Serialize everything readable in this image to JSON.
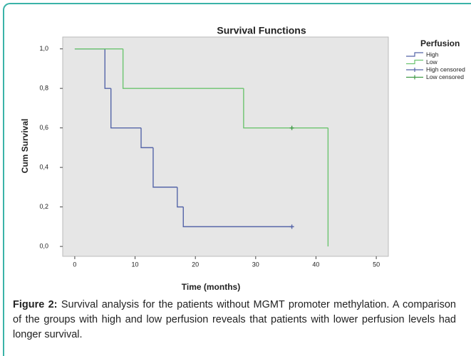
{
  "chart_data": {
    "type": "survival",
    "title": "Survival Functions",
    "x_label": "Time (months)",
    "y_label": "Cum Survival",
    "legend_title": "Perfusion",
    "legend_position": "right",
    "grid": false,
    "series": [
      {
        "name": "High",
        "color": "#5565a8",
        "mark": "step",
        "x": [
          0,
          5,
          6,
          11,
          13,
          17,
          18,
          36
        ],
        "values": [
          1,
          0.8,
          0.6,
          0.5,
          0.3,
          0.2,
          0.1,
          0.1
        ]
      },
      {
        "name": "Low",
        "color": "#6cc46f",
        "mark": "step",
        "x": [
          0,
          8,
          28,
          42
        ],
        "values": [
          1,
          0.8,
          0.6,
          0
        ]
      },
      {
        "name": "High censored",
        "color": "#5565a8",
        "mark": "plus",
        "x": [
          36
        ],
        "values": [
          0.1
        ]
      },
      {
        "name": "Low censored",
        "color": "#3f9a45",
        "mark": "plus",
        "x": [
          36
        ],
        "values": [
          0.6
        ]
      }
    ],
    "xlim": [
      -2,
      52
    ],
    "xticks": [
      0,
      10,
      20,
      30,
      40,
      50
    ],
    "ylim": [
      -0.05,
      1.06
    ],
    "yticks": [
      {
        "value": 0,
        "label": "0,0"
      },
      {
        "value": 0.2,
        "label": "0,2"
      },
      {
        "value": 0.4,
        "label": "0,4"
      },
      {
        "value": 0.6,
        "label": "0,6"
      },
      {
        "value": 0.8,
        "label": "0,8"
      },
      {
        "value": 1,
        "label": "1,0"
      }
    ]
  },
  "caption": {
    "label": "Figure 2:",
    "text": "Survival analysis for the patients without MGMT promoter methylation. A comparison of the groups with high and low perfusion reveals that patients with lower perfusion levels had longer survival."
  }
}
